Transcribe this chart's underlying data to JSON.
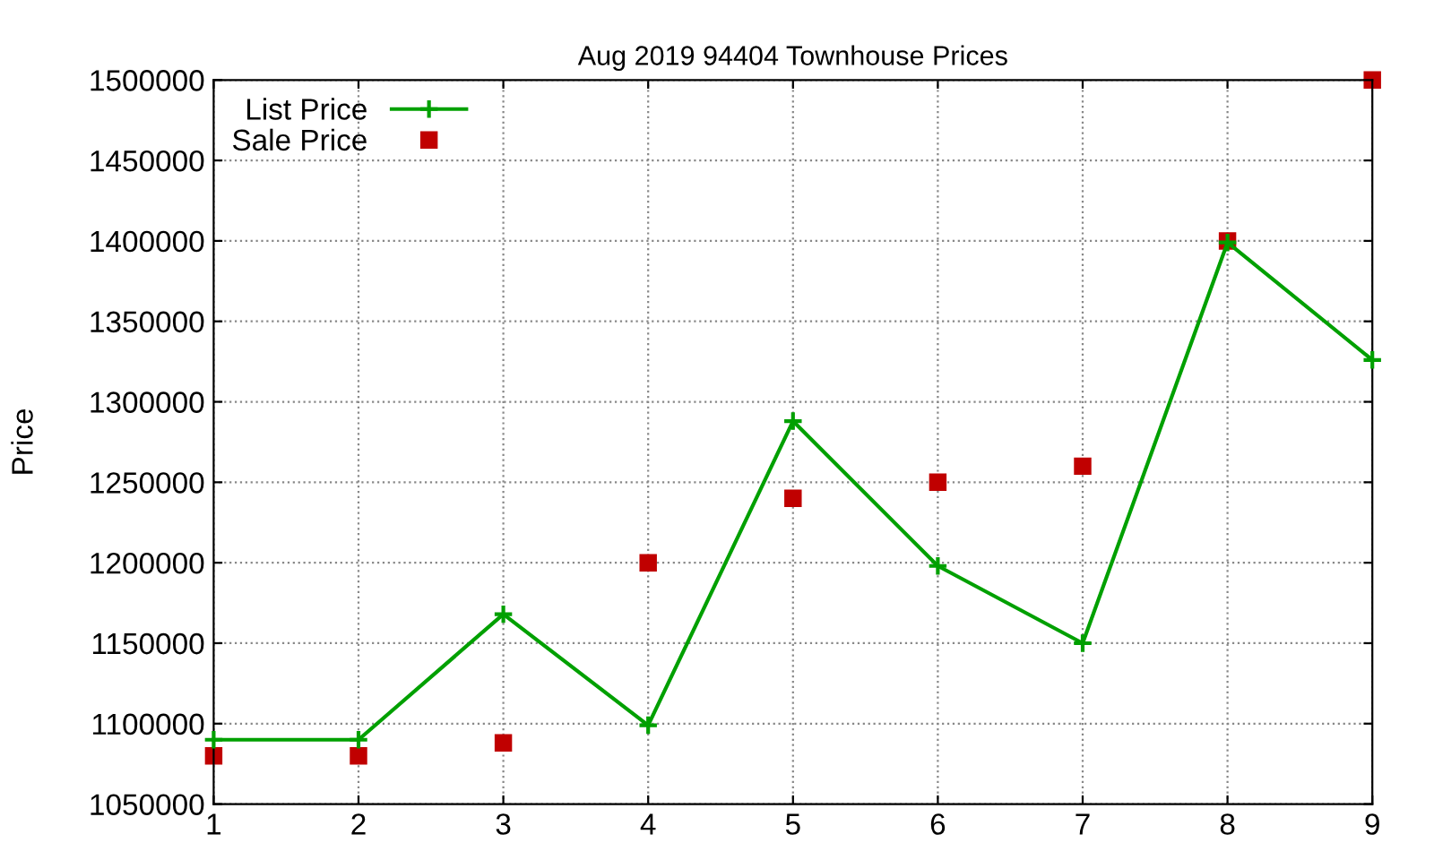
{
  "chart_data": {
    "type": "line",
    "title": "Aug 2019 94404 Townhouse Prices",
    "ylabel": "Price",
    "x": [
      1,
      2,
      3,
      4,
      5,
      6,
      7,
      8,
      9
    ],
    "series": [
      {
        "name": "List Price",
        "color": "#00a000",
        "marker": "cross",
        "values": [
          1090000,
          1090000,
          1168000,
          1099000,
          1288000,
          1198000,
          1150000,
          1399000,
          1326000
        ]
      },
      {
        "name": "Sale Price",
        "type": "scatter",
        "color": "#c00000",
        "marker": "square",
        "values": [
          1080000,
          1080000,
          1088000,
          1200000,
          1240000,
          1250000,
          1260000,
          1400000,
          1500000
        ]
      }
    ],
    "xlim": [
      1,
      9
    ],
    "xticks": [
      1,
      2,
      3,
      4,
      5,
      6,
      7,
      8,
      9
    ],
    "ylim": [
      1050000,
      1500000
    ],
    "yticks": [
      1050000,
      1100000,
      1150000,
      1200000,
      1250000,
      1300000,
      1350000,
      1400000,
      1450000,
      1500000
    ],
    "grid": true,
    "legend": "top left"
  }
}
